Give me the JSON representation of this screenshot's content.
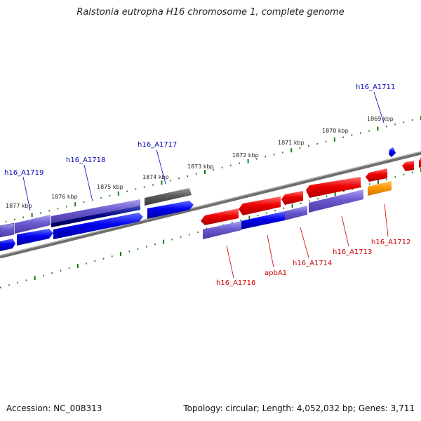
{
  "title": "Ralstonia eutropha H16 chromosome 1, complete genome",
  "footer": {
    "accession": "Accession: NC_008313",
    "topology": "Topology: circular; Length: 4,052,032 bp; Genes: 3,711"
  },
  "colors": {
    "forward_label": "#0000bb",
    "reverse_label": "#cc0000",
    "ruler": "#1a7a1a",
    "backbone": "#808080"
  },
  "ruler_labels": [
    "1869 kbp",
    "1870 kbp",
    "1871 kbp",
    "1872 kbp",
    "1873 kbp",
    "1874 kbp",
    "1875 kbp",
    "1876 kbp",
    "1877 kbp"
  ],
  "forward_genes": [
    {
      "label": "h16_A1711"
    },
    {
      "label": "h16_A1717"
    },
    {
      "label": "h16_A1718"
    },
    {
      "label": "h16_A1719"
    }
  ],
  "reverse_genes": [
    {
      "label": "h16_A1712"
    },
    {
      "label": "h16_A1713"
    },
    {
      "label": "h16_A1714"
    },
    {
      "label": "apbA1"
    },
    {
      "label": "h16_A1716"
    }
  ]
}
